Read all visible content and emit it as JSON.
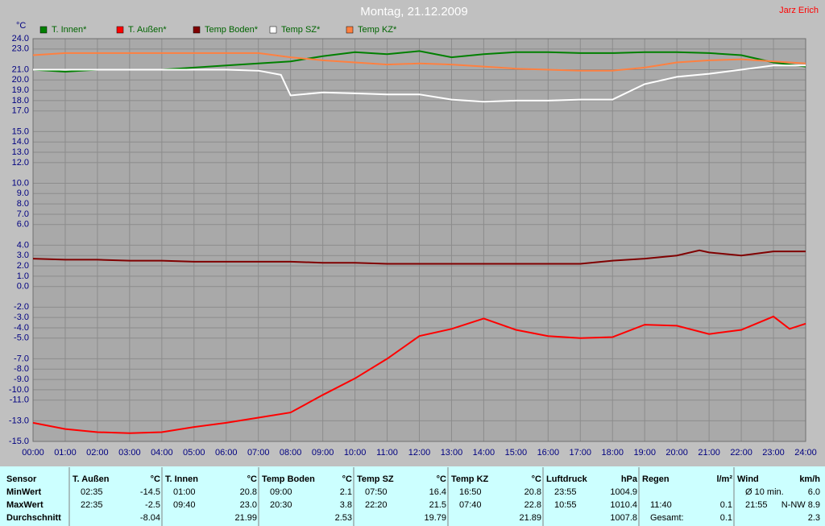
{
  "chart_data": {
    "type": "line",
    "title": "Montag, 21.12.2009",
    "author": "Jarz Erich",
    "y_label": "°C",
    "xlim": [
      0,
      24
    ],
    "xticks": [
      {
        "value": 0,
        "label": "00:00"
      },
      {
        "value": 1,
        "label": "01:00"
      },
      {
        "value": 2,
        "label": "02:00"
      },
      {
        "value": 3,
        "label": "03:00"
      },
      {
        "value": 4,
        "label": "04:00"
      },
      {
        "value": 5,
        "label": "05:00"
      },
      {
        "value": 6,
        "label": "06:00"
      },
      {
        "value": 7,
        "label": "07:00"
      },
      {
        "value": 8,
        "label": "08:00"
      },
      {
        "value": 9,
        "label": "09:00"
      },
      {
        "value": 10,
        "label": "10:00"
      },
      {
        "value": 11,
        "label": "11:00"
      },
      {
        "value": 12,
        "label": "12:00"
      },
      {
        "value": 13,
        "label": "13:00"
      },
      {
        "value": 14,
        "label": "14:00"
      },
      {
        "value": 15,
        "label": "15:00"
      },
      {
        "value": 16,
        "label": "16:00"
      },
      {
        "value": 17,
        "label": "17:00"
      },
      {
        "value": 18,
        "label": "18:00"
      },
      {
        "value": 19,
        "label": "19:00"
      },
      {
        "value": 20,
        "label": "20:00"
      },
      {
        "value": 21,
        "label": "21:00"
      },
      {
        "value": 22,
        "label": "22:00"
      },
      {
        "value": 23,
        "label": "23:00"
      },
      {
        "value": 24,
        "label": "24:00"
      }
    ],
    "ylim": [
      -15,
      24
    ],
    "yticks": [
      {
        "value": 24,
        "label": "24.0"
      },
      {
        "value": 23,
        "label": "23.0"
      },
      {
        "value": 21,
        "label": "21.0"
      },
      {
        "value": 20,
        "label": "20.0"
      },
      {
        "value": 19,
        "label": "19.0"
      },
      {
        "value": 18,
        "label": "18.0"
      },
      {
        "value": 17,
        "label": "17.0"
      },
      {
        "value": 15,
        "label": "15.0"
      },
      {
        "value": 14,
        "label": "14.0"
      },
      {
        "value": 13,
        "label": "13.0"
      },
      {
        "value": 12,
        "label": "12.0"
      },
      {
        "value": 10,
        "label": "10.0"
      },
      {
        "value": 9,
        "label": "9.0"
      },
      {
        "value": 8,
        "label": "8.0"
      },
      {
        "value": 7,
        "label": "7.0"
      },
      {
        "value": 6,
        "label": "6.0"
      },
      {
        "value": 4,
        "label": "4.0"
      },
      {
        "value": 3,
        "label": "3.0"
      },
      {
        "value": 2,
        "label": "2.0"
      },
      {
        "value": 1,
        "label": "1.0"
      },
      {
        "value": 0,
        "label": "0.0"
      },
      {
        "value": -2,
        "label": "-2.0"
      },
      {
        "value": -3,
        "label": "-3.0"
      },
      {
        "value": -4,
        "label": "-4.0"
      },
      {
        "value": -5,
        "label": "-5.0"
      },
      {
        "value": -7,
        "label": "-7.0"
      },
      {
        "value": -8,
        "label": "-8.0"
      },
      {
        "value": -9,
        "label": "-9.0"
      },
      {
        "value": -10,
        "label": "-10.0"
      },
      {
        "value": -11,
        "label": "-11.0"
      },
      {
        "value": -13,
        "label": "-13.0"
      },
      {
        "value": -15,
        "label": "-15.0"
      }
    ],
    "grid": true,
    "series": [
      {
        "name": "T. Innen*",
        "color": "#008000",
        "x": [
          0,
          1,
          2,
          3,
          4,
          5,
          6,
          7,
          8,
          9,
          10,
          11,
          12,
          13,
          14,
          15,
          16,
          17,
          18,
          19,
          20,
          21,
          22,
          23,
          24
        ],
        "values": [
          21.0,
          20.8,
          21.0,
          21.0,
          21.0,
          21.2,
          21.4,
          21.6,
          21.8,
          22.3,
          22.7,
          22.5,
          22.8,
          22.2,
          22.5,
          22.7,
          22.7,
          22.6,
          22.6,
          22.7,
          22.7,
          22.6,
          22.4,
          21.7,
          21.3
        ]
      },
      {
        "name": "T. Außen*",
        "color": "#ff0000",
        "x": [
          0,
          1,
          2,
          3,
          4,
          5,
          6,
          7,
          8,
          9,
          10,
          11,
          12,
          13,
          14,
          15,
          16,
          17,
          18,
          19,
          20,
          21,
          22,
          23,
          23.5,
          24
        ],
        "values": [
          -13.2,
          -13.8,
          -14.1,
          -14.2,
          -14.1,
          -13.6,
          -13.2,
          -12.7,
          -12.2,
          -10.5,
          -8.9,
          -7.0,
          -4.8,
          -4.1,
          -3.1,
          -4.2,
          -4.8,
          -5.0,
          -4.9,
          -3.7,
          -3.8,
          -4.6,
          -4.2,
          -2.9,
          -4.1,
          -3.6
        ]
      },
      {
        "name": "Temp Boden*",
        "color": "#800000",
        "x": [
          0,
          1,
          2,
          3,
          4,
          5,
          6,
          7,
          8,
          9,
          10,
          11,
          12,
          13,
          14,
          15,
          16,
          17,
          18,
          19,
          20,
          20.7,
          21,
          22,
          23,
          24
        ],
        "values": [
          2.7,
          2.6,
          2.6,
          2.5,
          2.5,
          2.4,
          2.4,
          2.4,
          2.4,
          2.3,
          2.3,
          2.2,
          2.2,
          2.2,
          2.2,
          2.2,
          2.2,
          2.2,
          2.5,
          2.7,
          3.0,
          3.5,
          3.3,
          3.0,
          3.4,
          3.4
        ]
      },
      {
        "name": "Temp SZ*",
        "color": "#ffffff",
        "x": [
          0,
          1,
          2,
          3,
          4,
          5,
          6,
          7,
          7.7,
          8,
          9,
          10,
          11,
          12,
          13,
          14,
          15,
          16,
          17,
          18,
          19,
          20,
          21,
          22,
          23,
          24
        ],
        "values": [
          21.0,
          21.0,
          21.0,
          21.0,
          21.0,
          21.0,
          21.0,
          20.9,
          20.5,
          18.5,
          18.8,
          18.7,
          18.6,
          18.6,
          18.1,
          17.9,
          18.0,
          18.0,
          18.1,
          18.1,
          19.6,
          20.3,
          20.6,
          21.0,
          21.4,
          21.4
        ]
      },
      {
        "name": "Temp KZ*",
        "color": "#ff8040",
        "x": [
          0,
          1,
          2,
          3,
          4,
          5,
          6,
          7,
          8,
          9,
          10,
          11,
          12,
          13,
          14,
          15,
          16,
          17,
          18,
          19,
          20,
          21,
          22,
          23,
          24
        ],
        "values": [
          22.4,
          22.6,
          22.6,
          22.6,
          22.6,
          22.6,
          22.6,
          22.6,
          22.2,
          21.9,
          21.7,
          21.5,
          21.6,
          21.5,
          21.3,
          21.1,
          21.0,
          20.9,
          20.9,
          21.2,
          21.7,
          21.9,
          22.0,
          21.8,
          21.6
        ]
      }
    ]
  },
  "table": {
    "row_labels": [
      "Sensor",
      "MinWert",
      "MaxWert",
      "Durchschnitt"
    ],
    "groups": [
      {
        "name": "T. Außen",
        "unit": "°C",
        "min": [
          "02:35",
          "-14.5"
        ],
        "max": [
          "22:35",
          "-2.5"
        ],
        "avg": [
          "-8.04"
        ]
      },
      {
        "name": "T. Innen",
        "unit": "°C",
        "min": [
          "01:00",
          "20.8"
        ],
        "max": [
          "09:40",
          "23.0"
        ],
        "avg": [
          "21.99"
        ]
      },
      {
        "name": "Temp Boden",
        "unit": "°C",
        "min": [
          "09:00",
          "2.1"
        ],
        "max": [
          "20:30",
          "3.8"
        ],
        "avg": [
          "2.53"
        ]
      },
      {
        "name": "Temp SZ",
        "unit": "°C",
        "min": [
          "07:50",
          "16.4"
        ],
        "max": [
          "22:20",
          "21.5"
        ],
        "avg": [
          "19.79"
        ]
      },
      {
        "name": "Temp KZ",
        "unit": "°C",
        "min": [
          "16:50",
          "20.8"
        ],
        "max": [
          "07:40",
          "22.8"
        ],
        "avg": [
          "21.89"
        ]
      },
      {
        "name": "Luftdruck",
        "unit": "hPa",
        "min": [
          "23:55",
          "1004.9"
        ],
        "max": [
          "10:55",
          "1010.4"
        ],
        "avg": [
          "1007.8"
        ]
      },
      {
        "name": "Regen",
        "unit": "l/m²",
        "min": [],
        "max": [
          "11:40",
          "0.1"
        ],
        "avg": [
          "Gesamt:",
          "0.1"
        ]
      },
      {
        "name": "Wind",
        "unit": "km/h",
        "min": [
          "Ø 10 min.",
          "6.0"
        ],
        "max": [
          "21:55",
          "N-NW 8.9"
        ],
        "avg": [
          "2.3"
        ]
      }
    ]
  }
}
